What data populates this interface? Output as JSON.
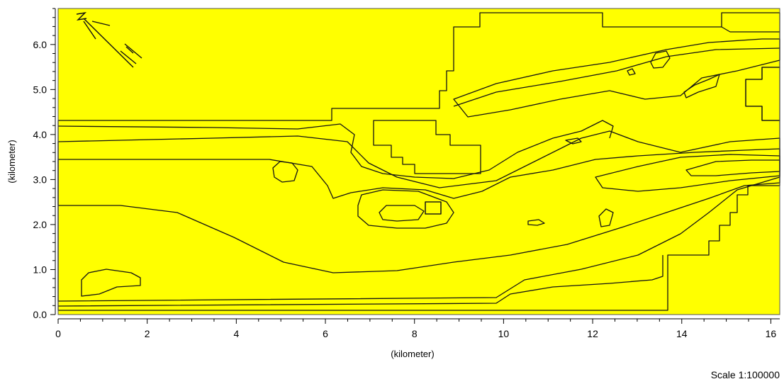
{
  "map": {
    "x_axis": {
      "label": "(kilometer)",
      "ticks": [
        "0",
        "2",
        "4",
        "6",
        "8",
        "10",
        "12",
        "14",
        "16"
      ],
      "range": [
        0,
        16.2
      ]
    },
    "y_axis": {
      "label": "(kilometer)",
      "ticks": [
        "0.0",
        "1.0",
        "2.0",
        "3.0",
        "4.0",
        "5.0",
        "6.0"
      ],
      "range": [
        0,
        6.8
      ]
    },
    "scale": "Scale 1:100000",
    "north_arrow_letter": "N",
    "colors": {
      "land": "#ffff00",
      "water_level_1": "#a3b8ec",
      "water_level_2": "#8aa2e6",
      "water_level_3": "#6d85dc",
      "water_level_4": "#5a72d2",
      "water_level_5": "#4a60c6",
      "contour": "#141414"
    }
  }
}
